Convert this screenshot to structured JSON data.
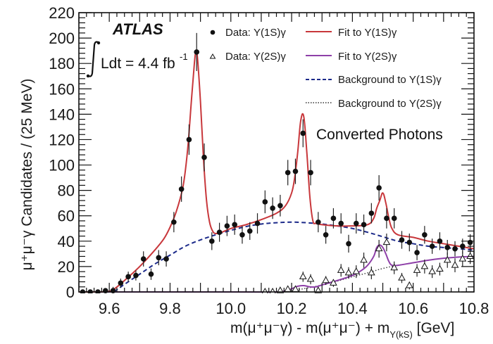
{
  "chart_data": {
    "type": "scatter",
    "title": "",
    "experiment_label": "ATLAS",
    "luminosity_label": "Ldt = 4.4 fb",
    "luminosity_superscript": "-1",
    "annotation": "Converted Photons",
    "xlabel_parts": {
      "main": "m(μ⁺μ⁻γ) - m(μ⁺μ⁻) + m",
      "subscript": "Υ(kS)",
      "unit": " [GeV]"
    },
    "ylabel": "μ⁺μ⁻γ Candidates / (25 MeV)",
    "xlim": [
      9.5,
      10.8
    ],
    "ylim": [
      0,
      220
    ],
    "x_ticks": [
      9.6,
      9.8,
      10.0,
      10.2,
      10.4,
      10.6,
      10.8
    ],
    "x_tick_labels": [
      "9.6",
      "9.8",
      "10.0",
      "10.2",
      "10.4",
      "10.6",
      "10.8"
    ],
    "y_ticks": [
      0,
      20,
      40,
      60,
      80,
      100,
      120,
      140,
      160,
      180,
      200,
      220
    ],
    "y_tick_labels": [
      "0",
      "20",
      "40",
      "60",
      "80",
      "100",
      "120",
      "140",
      "160",
      "180",
      "200",
      "220"
    ],
    "grid": false,
    "legend": {
      "placement": "top-right",
      "entries": [
        {
          "label": "Data: Υ(1S)γ",
          "marker": "filled-circle"
        },
        {
          "label": "Fit to Υ(1S)γ",
          "line": "solid",
          "color": "#c8373b"
        },
        {
          "label": "Data: Υ(2S)γ",
          "marker": "open-triangle"
        },
        {
          "label": "Fit to Υ(2S)γ",
          "line": "solid",
          "color": "#8e3fa8"
        },
        {
          "label": "Background to Υ(1S)γ",
          "line": "dashed",
          "color": "#1c2a8a"
        },
        {
          "label": "Background to Υ(2S)γ",
          "line": "dotted",
          "color": "#333333"
        }
      ]
    },
    "colors": {
      "fit_1s": "#c8373b",
      "fit_2s": "#8e3fa8",
      "bkg_1s": "#1c2a8a",
      "bkg_2s": "#333333",
      "data": "#111111",
      "axis": "#111111"
    },
    "series": [
      {
        "name": "Data: Υ(1S)γ",
        "kind": "points",
        "x": [
          9.5125,
          9.5375,
          9.5625,
          9.5875,
          9.6125,
          9.6375,
          9.6625,
          9.6875,
          9.7125,
          9.7375,
          9.7625,
          9.7875,
          9.8125,
          9.8375,
          9.8625,
          9.8875,
          9.9125,
          9.9375,
          9.9625,
          9.9875,
          10.0125,
          10.0375,
          10.0625,
          10.0875,
          10.1125,
          10.1375,
          10.1625,
          10.1875,
          10.2125,
          10.2375,
          10.2625,
          10.2875,
          10.3125,
          10.3375,
          10.3625,
          10.3875,
          10.4125,
          10.4375,
          10.4625,
          10.4875,
          10.5125,
          10.5375,
          10.5625,
          10.5875,
          10.6125,
          10.6375,
          10.6625,
          10.6875,
          10.7125,
          10.7375,
          10.7625,
          10.7875
        ],
        "y": [
          0,
          0,
          0,
          1,
          1,
          7,
          12,
          13,
          26,
          14,
          27,
          26,
          55,
          81,
          120,
          189,
          106,
          40,
          47,
          52,
          53,
          45,
          48,
          54,
          71,
          66,
          68,
          94,
          95,
          125,
          94,
          55,
          45,
          58,
          54,
          38,
          54,
          53,
          62,
          82,
          58,
          58,
          41,
          39,
          31,
          45,
          36,
          40,
          35,
          34,
          36,
          39
        ],
        "yerr": [
          1,
          1,
          1,
          2,
          3,
          3.5,
          4,
          4,
          6,
          4.5,
          6,
          6,
          8,
          10,
          12,
          15,
          11,
          7,
          7.5,
          8,
          8,
          7,
          7,
          8,
          9,
          8.5,
          8.5,
          10,
          10,
          11,
          10,
          8,
          7,
          8,
          8,
          7,
          8,
          8,
          8,
          10,
          8,
          8,
          7,
          7,
          6,
          7,
          6,
          7,
          6,
          6,
          6,
          6.5
        ]
      },
      {
        "name": "Data: Υ(2S)γ",
        "kind": "points",
        "x": [
          10.1125,
          10.1375,
          10.1625,
          10.1875,
          10.2125,
          10.2375,
          10.2625,
          10.2875,
          10.3125,
          10.3375,
          10.3625,
          10.3875,
          10.4125,
          10.4375,
          10.4625,
          10.4875,
          10.5125,
          10.5375,
          10.5625,
          10.5875,
          10.6125,
          10.6375,
          10.6625,
          10.6875,
          10.7125,
          10.7375,
          10.7625,
          10.7875
        ],
        "y": [
          0,
          0,
          1,
          2,
          2,
          12,
          10,
          1,
          9,
          7,
          17,
          15,
          16,
          25,
          15,
          34,
          39,
          19,
          11,
          5,
          17,
          20,
          16,
          18,
          25,
          21,
          26,
          28
        ],
        "yerr": [
          1,
          1,
          1.5,
          2,
          2,
          4,
          4,
          1.5,
          3.5,
          3,
          5,
          4.5,
          5,
          6,
          5,
          7,
          7,
          5,
          4,
          3,
          5,
          5.5,
          5,
          5,
          6,
          5.5,
          6,
          6
        ]
      },
      {
        "name": "Fit to Υ(1S)γ",
        "kind": "line",
        "x": [
          9.5,
          9.55,
          9.6,
          9.62,
          9.65,
          9.7,
          9.75,
          9.78,
          9.8,
          9.82,
          9.84,
          9.85,
          9.86,
          9.87,
          9.88,
          9.885,
          9.89,
          9.9,
          9.91,
          9.92,
          9.93,
          9.94,
          9.95,
          9.97,
          10.0,
          10.05,
          10.1,
          10.15,
          10.18,
          10.2,
          10.21,
          10.22,
          10.23,
          10.24,
          10.25,
          10.26,
          10.27,
          10.28,
          10.3,
          10.35,
          10.4,
          10.45,
          10.47,
          10.48,
          10.49,
          10.5,
          10.51,
          10.52,
          10.53,
          10.55,
          10.6,
          10.65,
          10.7,
          10.75,
          10.8
        ],
        "y": [
          0,
          0,
          0.5,
          3,
          9,
          20,
          33,
          42,
          51,
          63,
          80,
          95,
          118,
          150,
          180,
          189,
          185,
          150,
          105,
          72,
          55,
          48,
          46,
          47,
          50,
          53,
          57,
          62,
          68,
          78,
          90,
          110,
          135,
          138,
          110,
          75,
          56,
          54,
          53,
          52,
          52,
          53,
          58,
          66,
          72,
          78,
          70,
          58,
          50,
          45,
          43,
          40,
          38,
          36,
          34
        ]
      },
      {
        "name": "Background to Υ(1S)γ",
        "kind": "line",
        "x": [
          9.5,
          9.55,
          9.6,
          9.62,
          9.65,
          9.7,
          9.75,
          9.8,
          9.85,
          9.9,
          9.95,
          10.0,
          10.05,
          10.1,
          10.15,
          10.2,
          10.25,
          10.3,
          10.35,
          10.4,
          10.45,
          10.5,
          10.55,
          10.6,
          10.65,
          10.7,
          10.75,
          10.8
        ],
        "y": [
          0,
          0,
          0,
          1,
          6,
          14,
          22,
          29,
          36,
          41,
          45,
          48.5,
          51.5,
          53.5,
          54.5,
          55,
          54.5,
          53.5,
          52,
          50,
          47,
          43.5,
          40,
          38,
          36,
          35,
          34,
          33
        ]
      },
      {
        "name": "Fit to Υ(2S)γ",
        "kind": "line",
        "x": [
          9.5,
          10.0,
          10.15,
          10.18,
          10.2,
          10.22,
          10.24,
          10.26,
          10.28,
          10.3,
          10.35,
          10.4,
          10.43,
          10.45,
          10.47,
          10.48,
          10.49,
          10.5,
          10.51,
          10.52,
          10.53,
          10.55,
          10.6,
          10.65,
          10.7,
          10.75,
          10.8
        ],
        "y": [
          0,
          0,
          0,
          1,
          2.5,
          4.5,
          5,
          4,
          4,
          5.5,
          9,
          13,
          17,
          21,
          28,
          35,
          37,
          35,
          30,
          24,
          21,
          21,
          23,
          25,
          26.5,
          27.5,
          28
        ]
      },
      {
        "name": "Background to Υ(2S)γ",
        "kind": "line",
        "x": [
          10.15,
          10.2,
          10.25,
          10.3,
          10.35,
          10.4,
          10.45,
          10.5,
          10.55,
          10.6,
          10.65,
          10.7,
          10.75,
          10.8
        ],
        "y": [
          0,
          1,
          3,
          5.5,
          8.5,
          12,
          15,
          18.5,
          21,
          23,
          25,
          26.5,
          27.5,
          28
        ]
      }
    ]
  }
}
